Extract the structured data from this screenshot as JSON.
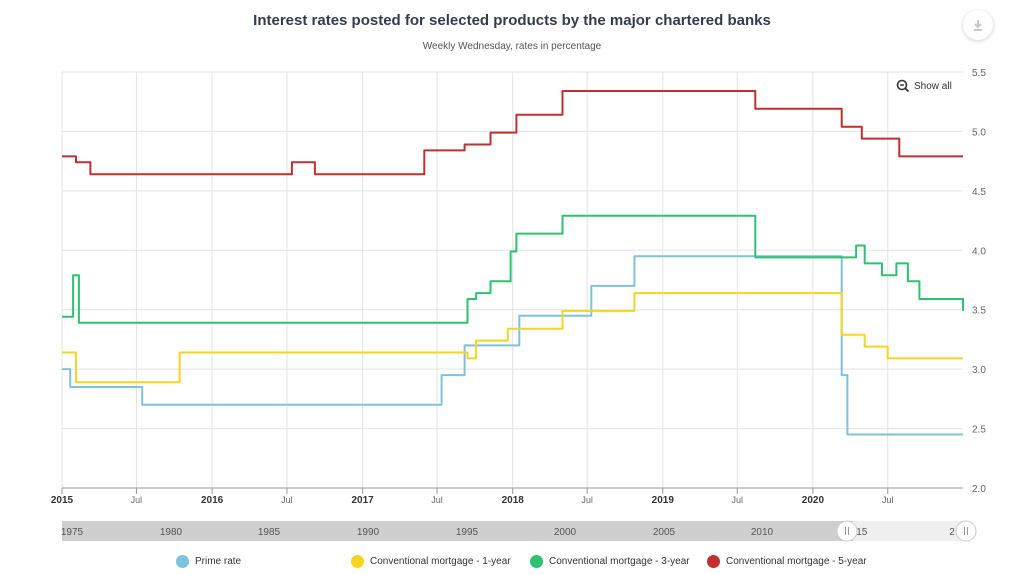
{
  "download_icon": "download-arrow-icon",
  "show_all_icon": "zoom-out-icon",
  "show_all_label": "Show all",
  "navigator_labels": [
    "1975",
    "1980",
    "1985",
    "1990",
    "1995",
    "2000",
    "2005",
    "2010",
    "015",
    "2"
  ],
  "colors": {
    "prime": "#7ec2de",
    "mortgage1": "#f7d322",
    "mortgage3": "#2ec270",
    "mortgage5": "#c1302e",
    "grid": "#e3e3e3",
    "navigator": "#cfcfcf"
  },
  "chart_data": {
    "type": "line",
    "title": "Interest rates posted for selected products by the major chartered banks",
    "subtitle": "Weekly Wednesday, rates in percentage",
    "x_ticks": [
      "2015",
      "Jul",
      "2016",
      "Jul",
      "2017",
      "Jul",
      "2018",
      "Jul",
      "2019",
      "Jul",
      "2020",
      "Jul"
    ],
    "y_ticks": [
      "2.0",
      "2.5",
      "3.0",
      "3.5",
      "4.0",
      "4.5",
      "5.0",
      "5.5"
    ],
    "ylim": [
      2.0,
      5.5
    ],
    "xlim": [
      "2015-01-01",
      "2020-12-31"
    ],
    "grid": true,
    "legend_position": "bottom",
    "series": [
      {
        "name": "Prime rate",
        "values": [
          [
            "2015-01-01",
            3.0
          ],
          [
            "2015-01-21",
            2.85
          ],
          [
            "2015-07-15",
            2.7
          ],
          [
            "2017-07-12",
            2.95
          ],
          [
            "2017-09-06",
            3.2
          ],
          [
            "2018-01-17",
            3.45
          ],
          [
            "2018-07-11",
            3.7
          ],
          [
            "2018-10-24",
            3.95
          ],
          [
            "2020-03-04",
            3.95
          ],
          [
            "2020-03-11",
            2.95
          ],
          [
            "2020-03-18",
            2.95
          ],
          [
            "2020-03-25",
            2.45
          ],
          [
            "2020-12-31",
            2.45
          ]
        ]
      },
      {
        "name": "Conventional mortgage - 1-year",
        "values": [
          [
            "2015-01-01",
            3.14
          ],
          [
            "2015-02-04",
            2.89
          ],
          [
            "2015-10-07",
            2.89
          ],
          [
            "2015-10-14",
            3.14
          ],
          [
            "2017-09-06",
            3.14
          ],
          [
            "2017-09-13",
            3.09
          ],
          [
            "2017-10-04",
            3.24
          ],
          [
            "2017-12-20",
            3.34
          ],
          [
            "2018-05-02",
            3.49
          ],
          [
            "2018-10-24",
            3.64
          ],
          [
            "2020-03-04",
            3.64
          ],
          [
            "2020-03-11",
            3.29
          ],
          [
            "2020-05-06",
            3.19
          ],
          [
            "2020-07-01",
            3.09
          ],
          [
            "2020-12-31",
            3.09
          ]
        ]
      },
      {
        "name": "Conventional mortgage - 3-year",
        "values": [
          [
            "2015-01-01",
            3.44
          ],
          [
            "2015-01-28",
            3.79
          ],
          [
            "2015-02-11",
            3.39
          ],
          [
            "2017-09-06",
            3.39
          ],
          [
            "2017-09-13",
            3.59
          ],
          [
            "2017-10-04",
            3.64
          ],
          [
            "2017-11-08",
            3.74
          ],
          [
            "2017-12-27",
            3.99
          ],
          [
            "2018-01-10",
            4.14
          ],
          [
            "2018-05-02",
            4.29
          ],
          [
            "2018-10-24",
            4.29
          ],
          [
            "2019-08-07",
            4.29
          ],
          [
            "2019-08-14",
            3.94
          ],
          [
            "2020-04-01",
            3.94
          ],
          [
            "2020-04-15",
            4.04
          ],
          [
            "2020-05-06",
            3.89
          ],
          [
            "2020-06-17",
            3.79
          ],
          [
            "2020-07-22",
            3.89
          ],
          [
            "2020-08-19",
            3.74
          ],
          [
            "2020-09-16",
            3.59
          ],
          [
            "2020-12-23",
            3.59
          ],
          [
            "2020-12-31",
            3.49
          ]
        ]
      },
      {
        "name": "Conventional mortgage - 5-year",
        "values": [
          [
            "2015-01-01",
            4.79
          ],
          [
            "2015-02-04",
            4.74
          ],
          [
            "2015-03-11",
            4.64
          ],
          [
            "2016-07-13",
            4.74
          ],
          [
            "2016-09-07",
            4.64
          ],
          [
            "2017-05-31",
            4.84
          ],
          [
            "2017-09-06",
            4.89
          ],
          [
            "2017-11-08",
            4.99
          ],
          [
            "2018-01-10",
            5.14
          ],
          [
            "2018-05-02",
            5.34
          ],
          [
            "2019-08-14",
            5.19
          ],
          [
            "2020-03-11",
            5.04
          ],
          [
            "2020-04-29",
            4.94
          ],
          [
            "2020-07-29",
            4.79
          ],
          [
            "2020-12-31",
            4.79
          ]
        ]
      }
    ]
  }
}
